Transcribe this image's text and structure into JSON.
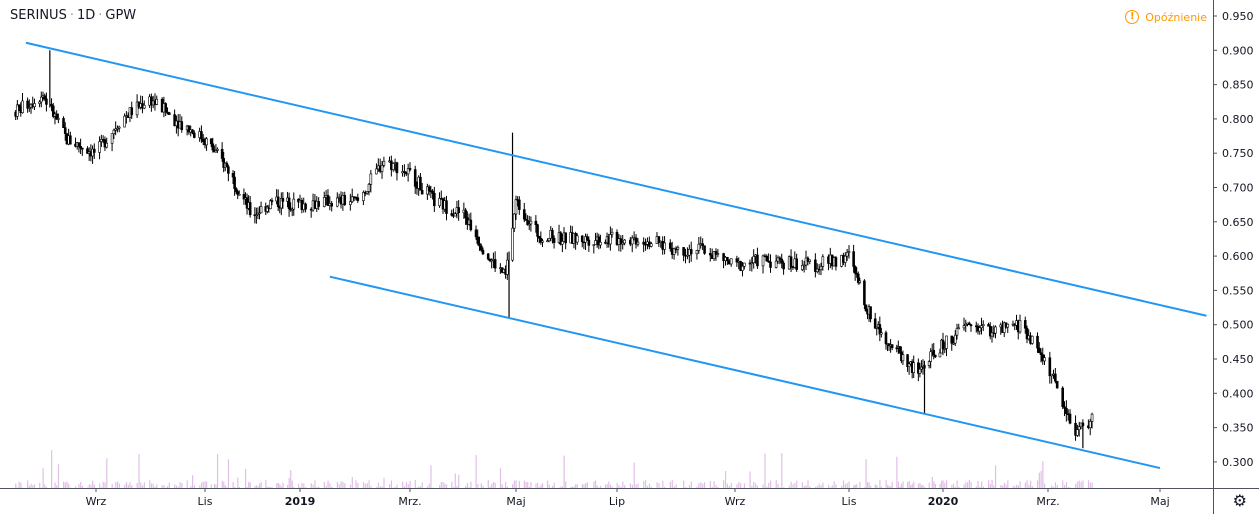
{
  "header": {
    "symbol": "SERINUS",
    "interval": "1D",
    "exchange": "GPW",
    "separator": "·"
  },
  "delay_badge": {
    "label": "Opóźnienie",
    "icon": "exclamation-circle-icon",
    "color": "#ff9800"
  },
  "settings_icon": "gear-icon",
  "chart_data": {
    "type": "candlestick",
    "title": "SERINUS · 1D · GPW",
    "y_ticks": [
      "0.300",
      "0.350",
      "0.400",
      "0.450",
      "0.500",
      "0.550",
      "0.600",
      "0.650",
      "0.700",
      "0.750",
      "0.800",
      "0.850",
      "0.900",
      "0.950"
    ],
    "ylim": [
      0.28,
      0.965
    ],
    "x_ticks": [
      {
        "label": "Wrz",
        "date": "2018-09-01",
        "bold": false
      },
      {
        "label": "Lis",
        "date": "2018-11-01",
        "bold": false
      },
      {
        "label": "2019",
        "date": "2019-01-01",
        "bold": true
      },
      {
        "label": "Mrz.",
        "date": "2019-03-01",
        "bold": false
      },
      {
        "label": "Maj",
        "date": "2019-05-01",
        "bold": false
      },
      {
        "label": "Lip",
        "date": "2019-07-01",
        "bold": false
      },
      {
        "label": "Wrz",
        "date": "2019-09-01",
        "bold": false
      },
      {
        "label": "Lis",
        "date": "2019-11-01",
        "bold": false
      },
      {
        "label": "2020",
        "date": "2020-01-01",
        "bold": true
      },
      {
        "label": "Mrz.",
        "date": "2020-03-01",
        "bold": false
      },
      {
        "label": "Maj",
        "date": "2020-05-01",
        "bold": false
      }
    ],
    "close_series": [
      [
        "2018-07-15",
        0.81
      ],
      [
        "2018-08-01",
        0.835
      ],
      [
        "2018-08-15",
        0.77
      ],
      [
        "2018-09-01",
        0.75
      ],
      [
        "2018-09-15",
        0.8
      ],
      [
        "2018-10-01",
        0.83
      ],
      [
        "2018-10-15",
        0.8
      ],
      [
        "2018-11-01",
        0.77
      ],
      [
        "2018-11-15",
        0.73
      ],
      [
        "2018-12-01",
        0.66
      ],
      [
        "2018-12-15",
        0.68
      ],
      [
        "2019-01-01",
        0.675
      ],
      [
        "2019-01-15",
        0.68
      ],
      [
        "2019-02-01",
        0.68
      ],
      [
        "2019-02-15",
        0.74
      ],
      [
        "2019-03-01",
        0.72
      ],
      [
        "2019-03-15",
        0.68
      ],
      [
        "2019-04-01",
        0.66
      ],
      [
        "2019-04-15",
        0.6
      ],
      [
        "2019-04-25",
        0.57
      ],
      [
        "2019-05-01",
        0.68
      ],
      [
        "2019-05-15",
        0.63
      ],
      [
        "2019-06-01",
        0.625
      ],
      [
        "2019-06-15",
        0.625
      ],
      [
        "2019-07-01",
        0.625
      ],
      [
        "2019-07-15",
        0.625
      ],
      [
        "2019-08-01",
        0.61
      ],
      [
        "2019-08-15",
        0.61
      ],
      [
        "2019-09-01",
        0.585
      ],
      [
        "2019-09-15",
        0.595
      ],
      [
        "2019-10-01",
        0.59
      ],
      [
        "2019-10-15",
        0.587
      ],
      [
        "2019-11-01",
        0.6
      ],
      [
        "2019-11-15",
        0.51
      ],
      [
        "2019-12-01",
        0.465
      ],
      [
        "2019-12-15",
        0.43
      ],
      [
        "2020-01-01",
        0.47
      ],
      [
        "2020-01-15",
        0.5
      ],
      [
        "2020-02-01",
        0.49
      ],
      [
        "2020-02-15",
        0.5
      ],
      [
        "2020-03-01",
        0.44
      ],
      [
        "2020-03-15",
        0.345
      ],
      [
        "2020-03-25",
        0.36
      ]
    ],
    "extremes": [
      {
        "date": "2018-08-05",
        "high": 0.9
      },
      {
        "date": "2019-04-27",
        "low": 0.51
      },
      {
        "date": "2019-04-29",
        "high": 0.78
      },
      {
        "date": "2019-12-20",
        "low": 0.37
      },
      {
        "date": "2020-03-20",
        "low": 0.32
      }
    ],
    "trendlines": [
      {
        "name": "upper-channel",
        "from": [
          "2018-07-22",
          0.911
        ],
        "to": [
          "2020-05-28",
          0.513
        ],
        "color": "#2196f3"
      },
      {
        "name": "lower-channel",
        "from": [
          "2019-01-17",
          0.57
        ],
        "to": [
          "2020-05-01",
          0.291
        ],
        "color": "#2196f3"
      }
    ],
    "volume_color": "#e1bee7",
    "grid": false
  }
}
